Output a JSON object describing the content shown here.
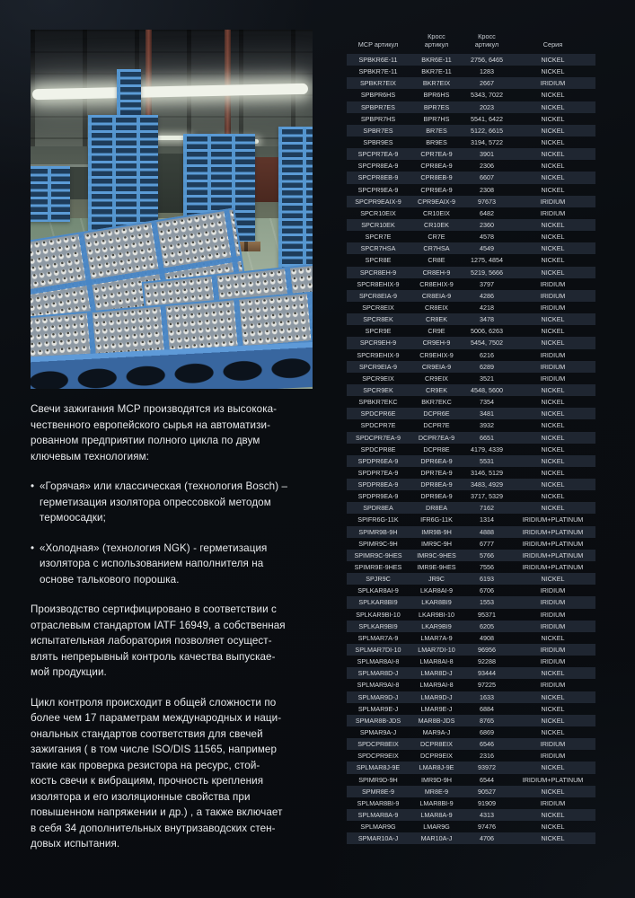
{
  "colors": {
    "page_background": "#0a0d11",
    "row_stripe": "#1f2631",
    "table_text": "#d7dade",
    "intro_text": "#e8eaec",
    "crate_blue": "#4c8ac8",
    "floor_green": "#8fa18d"
  },
  "photo": {
    "name": "factory-floor-photo",
    "subject": "Factory hall with stacks of blue crates filled with white spark plug insulators"
  },
  "intro": {
    "bullet": "•",
    "paragraphs": [
      {
        "text": "Свечи зажигания MCP производятся из высокока-\nчественного европейского сырья на автоматизи-\nрованном предприятии полного цикла по двум\nключевым технологиям:"
      },
      {
        "text": "«Горячая» или классическая (технология Bosch) –\nгерметизация изолятора опрессовкой методом\nтермоосадки;"
      },
      {
        "text": "«Холодная» (технология NGK) - герметизация\nизолятора с использованием наполнителя на\nоснове талькового порошка."
      },
      {
        "text": "Производство сертифицировано в соответствии с\nотраслевым стандартом IATF 16949, а собственная\nиспытательная лаборатория позволяет осущест-\nвлять непрерывный контроль качества выпускае-\nмой продукции."
      },
      {
        "text": "Цикл контроля происходит в общей сложности по\nболее чем 17 параметрам международных и наци-\nональных стандартов соответствия для свечей\nзажигания ( в том числе ISO/DIS 11565, например\nтакие как проверка резистора на ресурс, стой-\nкость свечи к вибрациям, прочность крепления\nизолятора и его изоляционные свойства при\nповышенном напряжении и др.) , а также включает\nв себя 34 дополнительных внутризаводских стен-\nдовых испытания."
      }
    ]
  },
  "table": {
    "headers": [
      "MCP артикул",
      "Кросс\nартикул",
      "Кросс\nартикул",
      "Серия"
    ],
    "rows": [
      [
        "SPBKR6E-11",
        "BKR6E-11",
        "2756, 6465",
        "NICKEL"
      ],
      [
        "SPBKR7E-11",
        "BKR7E-11",
        "1283",
        "NICKEL"
      ],
      [
        "SPBKR7EIX",
        "BKR7EIX",
        "2667",
        "IRIDIUM"
      ],
      [
        "SPBPR6HS",
        "BPR6HS",
        "5343, 7022",
        "NICKEL"
      ],
      [
        "SPBPR7ES",
        "BPR7ES",
        "2023",
        "NICKEL"
      ],
      [
        "SPBPR7HS",
        "BPR7HS",
        "5541, 6422",
        "NICKEL"
      ],
      [
        "SPBR7ES",
        "BR7ES",
        "5122, 6615",
        "NICKEL"
      ],
      [
        "SPBR9ES",
        "BR9ES",
        "3194, 5722",
        "NICKEL"
      ],
      [
        "SPCPR7EA-9",
        "CPR7EA-9",
        "3901",
        "NICKEL"
      ],
      [
        "SPCPR8EA-9",
        "CPR8EA-9",
        "2306",
        "NICKEL"
      ],
      [
        "SPCPR8EB-9",
        "CPR8EB-9",
        "6607",
        "NICKEL"
      ],
      [
        "SPCPR9EA-9",
        "CPR9EA-9",
        "2308",
        "NICKEL"
      ],
      [
        "SPCPR9EAIX-9",
        "CPR9EAIX-9",
        "97673",
        "IRIDIUM"
      ],
      [
        "SPCR10EIX",
        "CR10EIX",
        "6482",
        "IRIDIUM"
      ],
      [
        "SPCR10EK",
        "CR10EK",
        "2360",
        "NICKEL"
      ],
      [
        "SPCR7E",
        "CR7E",
        "4578",
        "NICKEL"
      ],
      [
        "SPCR7HSA",
        "CR7HSA",
        "4549",
        "NICKEL"
      ],
      [
        "SPCR8E",
        "CR8E",
        "1275, 4854",
        "NICKEL"
      ],
      [
        "SPCR8EH-9",
        "CR8EH-9",
        "5219, 5666",
        "NICKEL"
      ],
      [
        "SPCR8EHIX-9",
        "CR8EHIX-9",
        "3797",
        "IRIDIUM"
      ],
      [
        "SPCR8EIA-9",
        "CR8EIA-9",
        "4286",
        "IRIDIUM"
      ],
      [
        "SPCR8EIX",
        "CR8EIX",
        "4218",
        "IRIDIUM"
      ],
      [
        "SPCR8EK",
        "CR8EK",
        "3478",
        "NICKEL"
      ],
      [
        "SPCR9E",
        "CR9E",
        "5006, 6263",
        "NICKEL"
      ],
      [
        "SPCR9EH-9",
        "CR9EH-9",
        "5454, 7502",
        "NICKEL"
      ],
      [
        "SPCR9EHIX-9",
        "CR9EHIX-9",
        "6216",
        "IRIDIUM"
      ],
      [
        "SPCR9EIA-9",
        "CR9EIA-9",
        "6289",
        "IRIDIUM"
      ],
      [
        "SPCR9EIX",
        "CR9EIX",
        "3521",
        "IRIDIUM"
      ],
      [
        "SPCR9EK",
        "CR9EK",
        "4548, 5600",
        "NICKEL"
      ],
      [
        "SPBKR7EKC",
        "BKR7EKC",
        "7354",
        "NICKEL"
      ],
      [
        "SPDCPR6E",
        "DCPR6E",
        "3481",
        "NICKEL"
      ],
      [
        "SPDCPR7E",
        "DCPR7E",
        "3932",
        "NICKEL"
      ],
      [
        "SPDCPR7EA-9",
        "DCPR7EA-9",
        "6651",
        "NICKEL"
      ],
      [
        "SPDCPR8E",
        "DCPR8E",
        "4179, 4339",
        "NICKEL"
      ],
      [
        "SPDPR6EA-9",
        "DPR6EA-9",
        "5531",
        "NICKEL"
      ],
      [
        "SPDPR7EA-9",
        "DPR7EA-9",
        "3146, 5129",
        "NICKEL"
      ],
      [
        "SPDPR8EA-9",
        "DPR8EA-9",
        "3483, 4929",
        "NICKEL"
      ],
      [
        "SPDPR9EA-9",
        "DPR9EA-9",
        "3717, 5329",
        "NICKEL"
      ],
      [
        "SPDR8EA",
        "DR8EA",
        "7162",
        "NICKEL"
      ],
      [
        "SPIFR6G-11K",
        "IFR6G-11K",
        "1314",
        "IRIDIUM+PLATINUM"
      ],
      [
        "SPIMR9B-9H",
        "IMR9B-9H",
        "4888",
        "IRIDIUM+PLATINUM"
      ],
      [
        "SPIMR9C-9H",
        "IMR9C-9H",
        "6777",
        "IRIDIUM+PLATINUM"
      ],
      [
        "SPIMR9C-9HES",
        "IMR9C-9HES",
        "5766",
        "IRIDIUM+PLATINUM"
      ],
      [
        "SPIMR9E-9HES",
        "IMR9E-9HES",
        "7556",
        "IRIDIUM+PLATINUM"
      ],
      [
        "SPJR9C",
        "JR9C",
        "6193",
        "NICKEL"
      ],
      [
        "SPLKAR8AI-9",
        "LKAR8AI-9",
        "6706",
        "IRIDIUM"
      ],
      [
        "SPLKAR8BI9",
        "LKAR8BI9",
        "1553",
        "IRIDIUM"
      ],
      [
        "SPLKAR9BI-10",
        "LKAR9BI-10",
        "95371",
        "IRIDIUM"
      ],
      [
        "SPLKAR9BI9",
        "LKAR9BI9",
        "6205",
        "IRIDIUM"
      ],
      [
        "SPLMAR7A-9",
        "LMAR7A-9",
        "4908",
        "NICKEL"
      ],
      [
        "SPLMAR7DI-10",
        "LMAR7DI-10",
        "96956",
        "IRIDIUM"
      ],
      [
        "SPLMAR8AI-8",
        "LMAR8AI-8",
        "92288",
        "IRIDIUM"
      ],
      [
        "SPLMAR8D-J",
        "LMAR8D-J",
        "93444",
        "NICKEL"
      ],
      [
        "SPLMAR9AI-8",
        "LMAR9AI-8",
        "97225",
        "IRIDIUM"
      ],
      [
        "SPLMAR9D-J",
        "LMAR9D-J",
        "1633",
        "NICKEL"
      ],
      [
        "SPLMAR9E-J",
        "LMAR9E-J",
        "6884",
        "NICKEL"
      ],
      [
        "SPMAR8B-JDS",
        "MAR8B-JDS",
        "8765",
        "NICKEL"
      ],
      [
        "SPMAR9A-J",
        "MAR9A-J",
        "6869",
        "NICKEL"
      ],
      [
        "SPDCPR8EIX",
        "DCPR8EIX",
        "6546",
        "IRIDIUM"
      ],
      [
        "SPDCPR9EIX",
        "DCPR9EIX",
        "2316",
        "IRIDIUM"
      ],
      [
        "SPLMAR8J-9E",
        "LMAR8J-9E",
        "93972",
        "NICKEL"
      ],
      [
        "SPIMR9D-9H",
        "IMR9D-9H",
        "6544",
        "IRIDIUM+PLATINUM"
      ],
      [
        "SPMR8E-9",
        "MR8E-9",
        "90527",
        "NICKEL"
      ],
      [
        "SPLMAR8BI-9",
        "LMAR8BI-9",
        "91909",
        "IRIDIUM"
      ],
      [
        "SPLMAR8A-9",
        "LMAR8A-9",
        "4313",
        "NICKEL"
      ],
      [
        "SPLMAR9G",
        "LMAR9G",
        "97476",
        "NICKEL"
      ],
      [
        "SPMAR10A-J",
        "MAR10A-J",
        "4706",
        "NICKEL"
      ]
    ]
  }
}
